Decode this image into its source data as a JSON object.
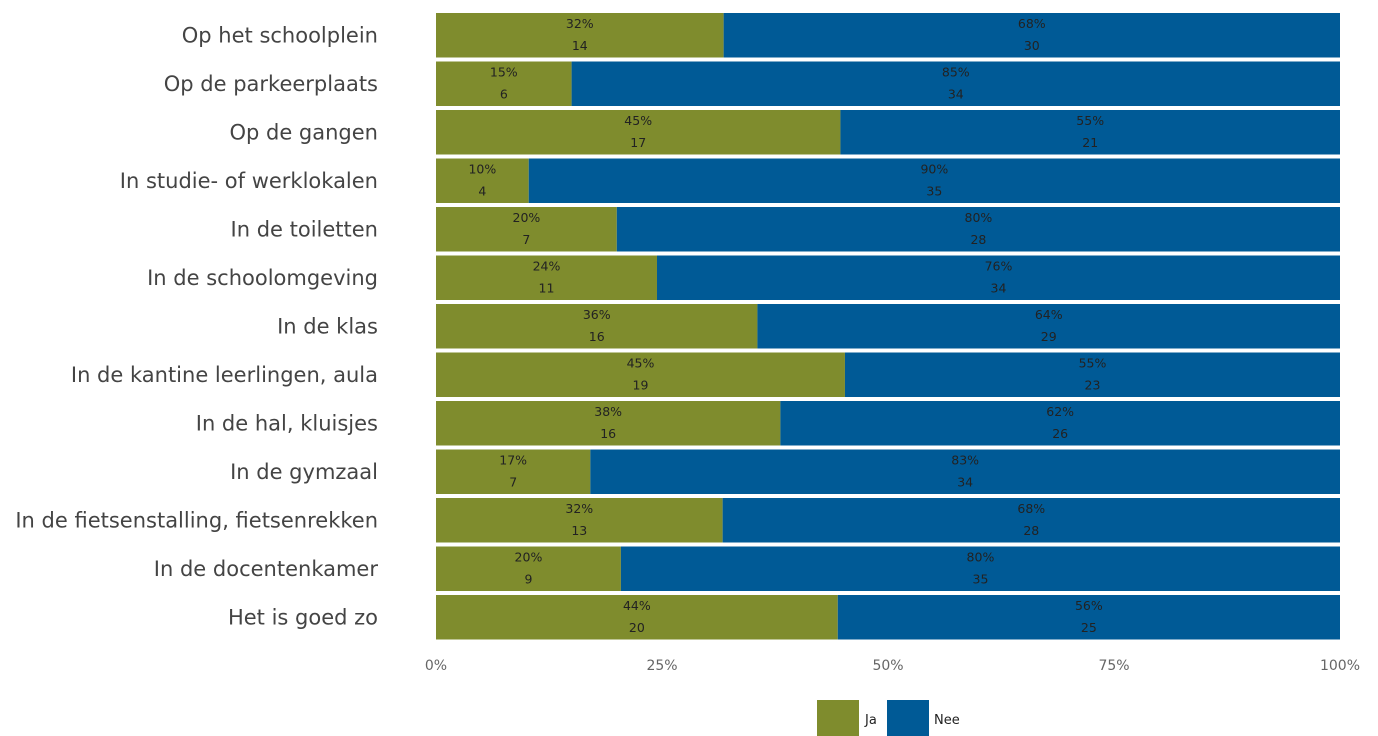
{
  "chart_data": {
    "type": "bar",
    "orientation": "horizontal",
    "stacked": true,
    "normalized": true,
    "categories": [
      "Op het schoolplein",
      "Op de parkeerplaats",
      "Op de gangen",
      "In studie- of werklokalen",
      "In de toiletten",
      "In de schoolomgeving",
      "In de klas",
      "In de kantine leerlingen, aula",
      "In de hal, kluisjes",
      "In de gymzaal",
      "In de fietsenstalling, fietsenrekken",
      "In de docentenkamer",
      "Het is goed zo"
    ],
    "series": [
      {
        "name": "Ja",
        "color": "#7f8c2d",
        "percent_labels": [
          "32%",
          "15%",
          "45%",
          "10%",
          "20%",
          "24%",
          "36%",
          "45%",
          "38%",
          "17%",
          "32%",
          "20%",
          "44%"
        ],
        "values": [
          14,
          6,
          17,
          4,
          7,
          11,
          16,
          19,
          16,
          7,
          13,
          9,
          20
        ]
      },
      {
        "name": "Nee",
        "color": "#005a96",
        "percent_labels": [
          "68%",
          "85%",
          "55%",
          "90%",
          "80%",
          "76%",
          "64%",
          "55%",
          "62%",
          "83%",
          "68%",
          "80%",
          "56%"
        ],
        "values": [
          30,
          34,
          21,
          35,
          28,
          34,
          29,
          23,
          26,
          34,
          28,
          35,
          25
        ]
      }
    ],
    "xlim": [
      0,
      100
    ],
    "xticks": [
      "0%",
      "25%",
      "50%",
      "75%",
      "100%"
    ],
    "xlabel": "",
    "ylabel": "",
    "title": "",
    "grid": false,
    "legend_position": "bottom"
  }
}
